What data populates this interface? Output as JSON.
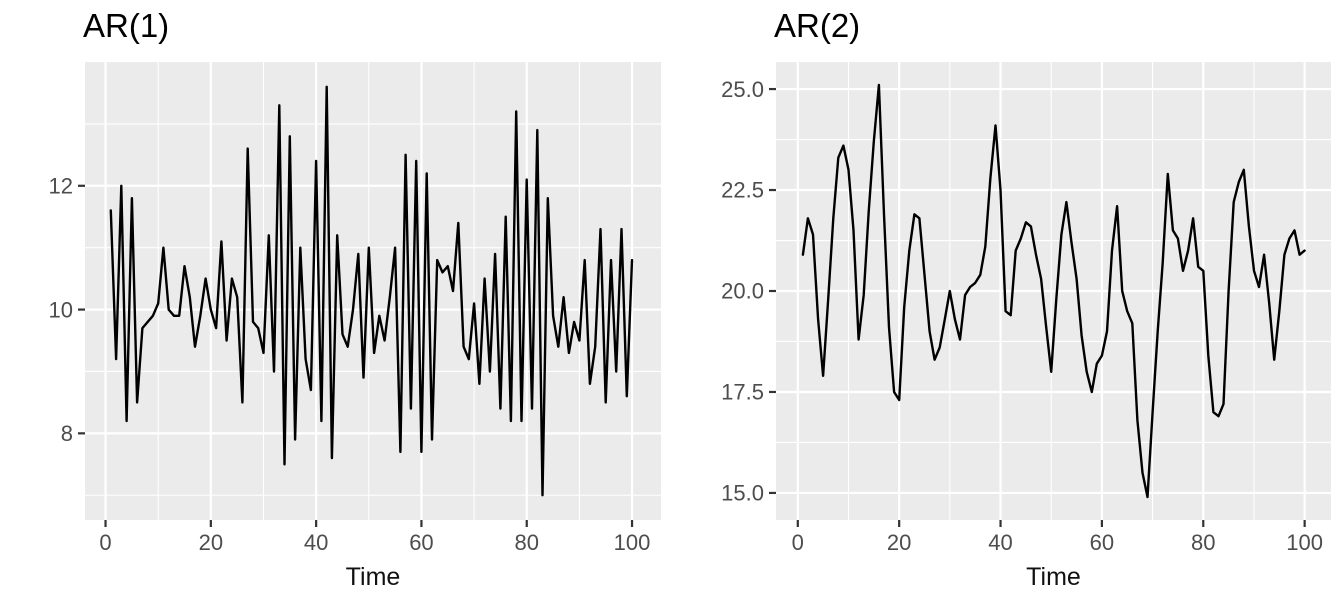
{
  "style": {
    "figure_bg": "#ffffff",
    "panel_bg": "#ebebeb",
    "grid_color": "#ffffff",
    "tick_mark_color": "#333333",
    "tick_label_color": "#4d4d4d",
    "title_color": "#000000",
    "series_color": "#000000"
  },
  "chart_data": [
    {
      "type": "line",
      "title": "AR(1)",
      "xlabel": "Time",
      "x_ticks": [
        0,
        20,
        40,
        60,
        80,
        100
      ],
      "x_tick_labels": [
        "0",
        "20",
        "40",
        "60",
        "80",
        "100"
      ],
      "x_minor": [
        10,
        30,
        50,
        70,
        90
      ],
      "y_ticks": [
        8,
        10,
        12
      ],
      "y_tick_labels": [
        "8",
        "10",
        "12"
      ],
      "y_minor": [
        7,
        9,
        11,
        13
      ],
      "xlim": [
        -3.9,
        105.5
      ],
      "ylim": [
        6.6,
        14.0
      ],
      "grid": true,
      "legend": "none",
      "x": [
        1,
        2,
        3,
        4,
        5,
        6,
        7,
        8,
        9,
        10,
        11,
        12,
        13,
        14,
        15,
        16,
        17,
        18,
        19,
        20,
        21,
        22,
        23,
        24,
        25,
        26,
        27,
        28,
        29,
        30,
        31,
        32,
        33,
        34,
        35,
        36,
        37,
        38,
        39,
        40,
        41,
        42,
        43,
        44,
        45,
        46,
        47,
        48,
        49,
        50,
        51,
        52,
        53,
        54,
        55,
        56,
        57,
        58,
        59,
        60,
        61,
        62,
        63,
        64,
        65,
        66,
        67,
        68,
        69,
        70,
        71,
        72,
        73,
        74,
        75,
        76,
        77,
        78,
        79,
        80,
        81,
        82,
        83,
        84,
        85,
        86,
        87,
        88,
        89,
        90,
        91,
        92,
        93,
        94,
        95,
        96,
        97,
        98,
        99,
        100
      ],
      "y": [
        11.6,
        9.2,
        12.0,
        8.2,
        11.8,
        8.5,
        9.7,
        9.8,
        9.9,
        10.1,
        11.0,
        10.0,
        9.9,
        9.9,
        10.7,
        10.2,
        9.4,
        9.9,
        10.5,
        10.0,
        9.7,
        11.1,
        9.5,
        10.5,
        10.2,
        8.5,
        12.6,
        9.8,
        9.7,
        9.3,
        11.2,
        9.0,
        13.3,
        7.5,
        12.8,
        7.9,
        11.0,
        9.2,
        8.7,
        12.4,
        8.2,
        13.6,
        7.6,
        11.2,
        9.6,
        9.4,
        10.0,
        10.9,
        8.9,
        11.0,
        9.3,
        9.9,
        9.5,
        10.2,
        11.0,
        7.7,
        12.5,
        8.4,
        12.4,
        7.7,
        12.2,
        7.9,
        10.8,
        10.6,
        10.7,
        10.3,
        11.4,
        9.4,
        9.2,
        10.1,
        8.8,
        10.5,
        9.0,
        10.9,
        8.4,
        11.5,
        8.2,
        13.2,
        8.2,
        12.1,
        8.4,
        12.9,
        7.0,
        11.8,
        9.9,
        9.4,
        10.2,
        9.3,
        9.8,
        9.5,
        10.8,
        8.8,
        9.4,
        11.3,
        8.5,
        10.8,
        9.0,
        11.3,
        8.6,
        10.8
      ]
    },
    {
      "type": "line",
      "title": "AR(2)",
      "xlabel": "Time",
      "x_ticks": [
        0,
        20,
        40,
        60,
        80,
        100
      ],
      "x_tick_labels": [
        "0",
        "20",
        "40",
        "60",
        "80",
        "100"
      ],
      "x_minor": [
        10,
        30,
        50,
        70,
        90
      ],
      "y_ticks": [
        15.0,
        17.5,
        20.0,
        22.5,
        25.0
      ],
      "y_tick_labels": [
        "15.0",
        "17.5",
        "20.0",
        "22.5",
        "25.0"
      ],
      "y_minor": [
        16.25,
        18.75,
        21.25,
        23.75
      ],
      "xlim": [
        -4.3,
        105.2
      ],
      "ylim": [
        14.33,
        25.67
      ],
      "grid": true,
      "legend": "none",
      "x": [
        1,
        2,
        3,
        4,
        5,
        6,
        7,
        8,
        9,
        10,
        11,
        12,
        13,
        14,
        15,
        16,
        17,
        18,
        19,
        20,
        21,
        22,
        23,
        24,
        25,
        26,
        27,
        28,
        29,
        30,
        31,
        32,
        33,
        34,
        35,
        36,
        37,
        38,
        39,
        40,
        41,
        42,
        43,
        44,
        45,
        46,
        47,
        48,
        49,
        50,
        51,
        52,
        53,
        54,
        55,
        56,
        57,
        58,
        59,
        60,
        61,
        62,
        63,
        64,
        65,
        66,
        67,
        68,
        69,
        70,
        71,
        72,
        73,
        74,
        75,
        76,
        77,
        78,
        79,
        80,
        81,
        82,
        83,
        84,
        85,
        86,
        87,
        88,
        89,
        90,
        91,
        92,
        93,
        94,
        95,
        96,
        97,
        98,
        99,
        100
      ],
      "y": [
        20.9,
        21.8,
        21.4,
        19.3,
        17.9,
        19.8,
        21.8,
        23.3,
        23.6,
        23.0,
        21.5,
        18.8,
        19.9,
        22.0,
        23.7,
        25.1,
        21.9,
        19.1,
        17.5,
        17.3,
        19.6,
        21.0,
        21.9,
        21.8,
        20.4,
        19.0,
        18.3,
        18.6,
        19.3,
        20.0,
        19.3,
        18.8,
        19.9,
        20.1,
        20.2,
        20.4,
        21.1,
        22.8,
        24.1,
        22.5,
        19.5,
        19.4,
        21.0,
        21.3,
        21.7,
        21.6,
        20.9,
        20.3,
        19.1,
        18.0,
        19.8,
        21.4,
        22.2,
        21.2,
        20.3,
        18.9,
        18.0,
        17.5,
        18.2,
        18.4,
        19.0,
        21.0,
        22.1,
        20.0,
        19.5,
        19.2,
        16.8,
        15.5,
        14.9,
        17.0,
        19.0,
        20.7,
        22.9,
        21.5,
        21.3,
        20.5,
        21.0,
        21.8,
        20.6,
        20.5,
        18.4,
        17.0,
        16.9,
        17.2,
        20.0,
        22.2,
        22.7,
        23.0,
        21.6,
        20.5,
        20.1,
        20.9,
        19.7,
        18.3,
        19.5,
        20.9,
        21.3,
        21.5,
        20.9,
        21.0
      ]
    }
  ]
}
